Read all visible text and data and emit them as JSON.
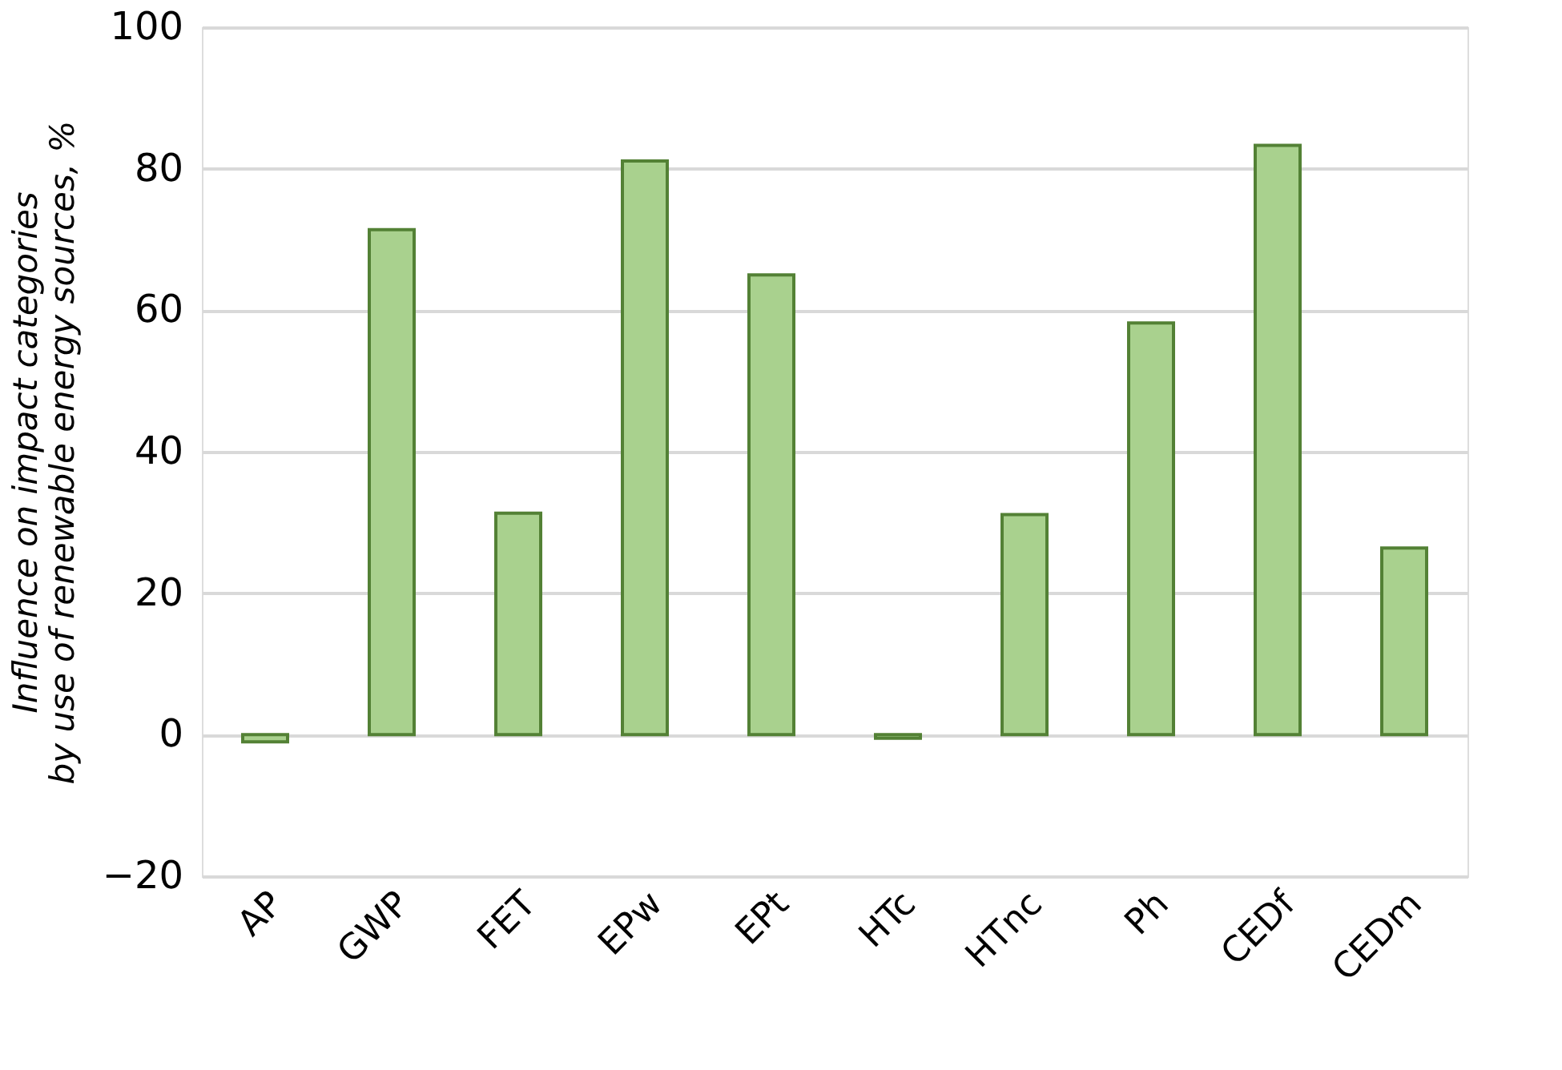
{
  "chart_data": {
    "type": "bar",
    "ylabel": "Influence on impact categories by use of renewable energy sources, %",
    "categories": [
      "AP",
      "GWP",
      "FET",
      "EPw",
      "EPt",
      "HTc",
      "HTnc",
      "Ph",
      "CEDf",
      "CEDm"
    ],
    "values": [
      -1.0,
      71.4,
      31.3,
      81.1,
      65.0,
      -0.5,
      31.1,
      58.2,
      83.3,
      26.4
    ],
    "color": "#a9d18e",
    "ylim": [
      -20,
      100
    ],
    "yticks": [
      -20,
      0,
      20,
      40,
      60,
      80,
      100
    ],
    "grid": "y"
  }
}
